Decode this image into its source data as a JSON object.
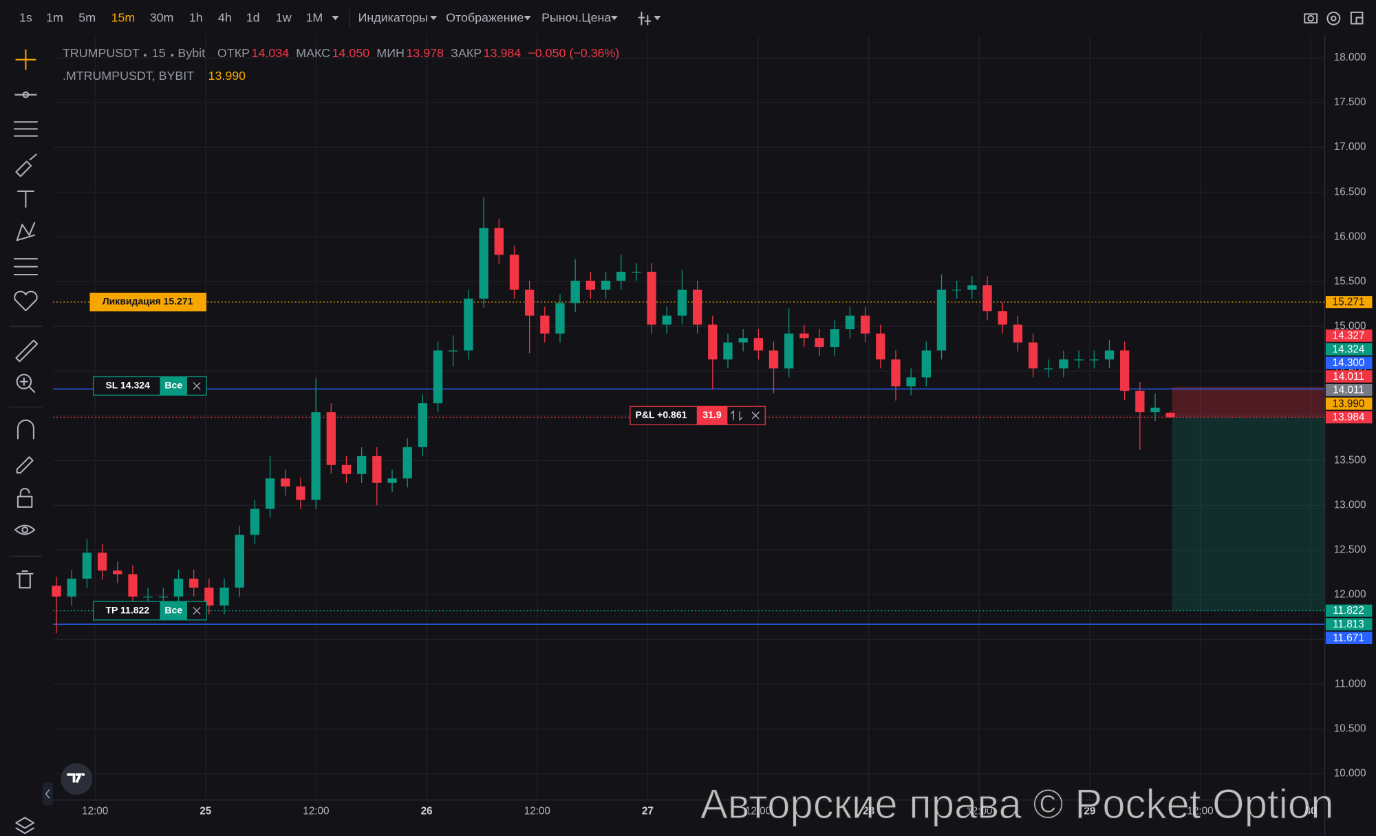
{
  "toolbar": {
    "timeframes": [
      "1s",
      "1m",
      "5m",
      "15m",
      "30m",
      "1h",
      "4h",
      "1d",
      "1w",
      "1M"
    ],
    "active": "15m",
    "menus": [
      "Индикаторы",
      "Отображение",
      "Рыноч.Цена"
    ]
  },
  "legend": {
    "symbol": "TRUMPUSDT",
    "interval": "15",
    "exchange": "Bybit",
    "fields": [
      {
        "label": "ОТКР",
        "value": "14.034"
      },
      {
        "label": "МАКС",
        "value": "14.050"
      },
      {
        "label": "МИН",
        "value": "13.978"
      },
      {
        "label": "ЗАКР",
        "value": "13.984"
      }
    ],
    "change": "−0.050 (−0.36%)",
    "symbol2": ".MTRUMPUSDT, BYBIT",
    "value2": "13.990"
  },
  "chart_data": {
    "type": "candlestick",
    "up_color": "#089981",
    "down_color": "#f23645",
    "grid": true,
    "open": [
      12.1,
      11.98,
      12.18,
      12.47,
      12.27,
      12.23,
      11.98,
      11.98,
      11.98,
      12.18,
      12.08,
      11.88,
      12.08,
      12.67,
      12.96,
      13.3,
      13.21,
      13.06,
      14.04,
      13.45,
      13.35,
      13.55,
      13.25,
      13.3,
      13.65,
      14.14,
      14.73,
      14.73,
      15.31,
      16.1,
      15.8,
      15.41,
      15.12,
      14.92,
      15.26,
      15.51,
      15.41,
      15.51,
      15.61,
      15.61,
      15.02,
      15.12,
      15.41,
      15.02,
      14.63,
      14.82,
      14.87,
      14.73,
      14.53,
      14.92,
      14.87,
      14.77,
      14.97,
      15.12,
      14.92,
      14.63,
      14.33,
      14.43,
      14.73,
      15.41,
      15.41,
      15.46,
      15.17,
      15.02,
      14.82,
      14.53,
      14.53,
      14.63,
      14.63,
      14.63,
      14.73,
      14.28,
      14.04,
      14.034
    ],
    "high": [
      12.2,
      12.28,
      12.62,
      12.57,
      12.37,
      12.33,
      12.08,
      12.08,
      12.28,
      12.28,
      12.18,
      12.18,
      12.77,
      13.06,
      13.55,
      13.4,
      13.31,
      14.42,
      14.14,
      13.55,
      13.65,
      13.65,
      13.4,
      13.75,
      14.24,
      14.83,
      14.9,
      15.41,
      16.44,
      16.2,
      15.9,
      15.51,
      15.22,
      15.36,
      15.75,
      15.61,
      15.61,
      15.8,
      15.71,
      15.71,
      15.22,
      15.63,
      15.51,
      15.12,
      14.92,
      14.97,
      14.97,
      14.83,
      15.2,
      15.02,
      14.97,
      15.07,
      15.22,
      15.22,
      15.02,
      14.73,
      14.53,
      14.83,
      15.58,
      15.51,
      15.56,
      15.56,
      15.27,
      15.12,
      14.92,
      14.63,
      14.73,
      14.73,
      14.73,
      14.85,
      14.83,
      14.38,
      14.25,
      14.05
    ],
    "low": [
      11.57,
      11.88,
      12.08,
      12.17,
      12.13,
      11.88,
      11.88,
      11.78,
      11.88,
      11.98,
      11.78,
      11.78,
      11.98,
      12.57,
      12.86,
      13.11,
      12.96,
      12.96,
      13.35,
      13.25,
      13.25,
      13.0,
      13.15,
      13.2,
      13.55,
      14.04,
      14.55,
      14.63,
      15.21,
      15.7,
      15.31,
      14.7,
      14.82,
      14.82,
      15.16,
      15.31,
      15.31,
      15.41,
      15.51,
      14.92,
      14.92,
      15.02,
      14.92,
      14.3,
      14.53,
      14.72,
      14.63,
      14.25,
      14.43,
      14.77,
      14.67,
      14.67,
      14.87,
      14.82,
      14.53,
      14.17,
      14.23,
      14.33,
      14.63,
      15.31,
      15.31,
      15.07,
      14.92,
      14.72,
      14.43,
      14.43,
      14.43,
      14.53,
      14.53,
      14.53,
      14.18,
      13.62,
      13.94,
      13.978
    ],
    "close": [
      11.98,
      12.18,
      12.47,
      12.27,
      12.23,
      11.98,
      11.98,
      11.98,
      12.18,
      12.08,
      11.88,
      12.08,
      12.67,
      12.96,
      13.3,
      13.21,
      13.06,
      14.04,
      13.45,
      13.35,
      13.55,
      13.25,
      13.3,
      13.65,
      14.14,
      14.73,
      14.73,
      15.31,
      16.1,
      15.8,
      15.41,
      15.12,
      14.92,
      15.26,
      15.51,
      15.41,
      15.51,
      15.61,
      15.61,
      15.02,
      15.12,
      15.41,
      15.02,
      14.63,
      14.82,
      14.87,
      14.73,
      14.53,
      14.92,
      14.87,
      14.77,
      14.97,
      15.12,
      14.92,
      14.63,
      14.33,
      14.43,
      14.73,
      15.41,
      15.41,
      15.46,
      15.17,
      15.02,
      14.82,
      14.53,
      14.53,
      14.63,
      14.63,
      14.63,
      14.73,
      14.28,
      14.04,
      14.09,
      13.984
    ],
    "ylim": [
      9.706,
      18.255
    ],
    "yticks": [
      {
        "value": 10,
        "label": "10.000"
      },
      {
        "value": 10.5,
        "label": "10.500"
      },
      {
        "value": 11,
        "label": "11.000"
      },
      {
        "value": 11.5,
        "label": "11.500"
      },
      {
        "value": 12,
        "label": "12.000"
      },
      {
        "value": 12.5,
        "label": "12.500"
      },
      {
        "value": 13,
        "label": "13.000"
      },
      {
        "value": 13.5,
        "label": "13.500"
      },
      {
        "value": 14,
        "label": "14.000"
      },
      {
        "value": 14.5,
        "label": "14.500"
      },
      {
        "value": 15,
        "label": "15.000"
      },
      {
        "value": 15.5,
        "label": "15.500"
      },
      {
        "value": 16,
        "label": "16.000"
      },
      {
        "value": 16.5,
        "label": "16.500"
      },
      {
        "value": 17,
        "label": "17.000"
      },
      {
        "value": 17.5,
        "label": "17.500"
      },
      {
        "value": 18,
        "label": "18.000"
      }
    ],
    "xtick_labels": [
      "12:00",
      "25",
      "12:00",
      "26",
      "12:00",
      "27",
      "12:00",
      "28",
      "12:00",
      "29",
      "12:00",
      "30"
    ],
    "levels": [
      {
        "value": 15.271,
        "color": "#f7a600",
        "style": "dotted"
      },
      {
        "value": 14.3,
        "color": "#2962ff",
        "style": "solid"
      },
      {
        "value": 13.984,
        "color": "#f23645",
        "style": "dotted"
      },
      {
        "value": 11.822,
        "color": "#089981",
        "style": "dotted"
      },
      {
        "value": 11.671,
        "color": "#2962ff",
        "style": "solid"
      }
    ],
    "position": {
      "entry": 13.984,
      "stop_loss": 14.324,
      "take_profit": 11.822
    },
    "price_labels": [
      {
        "value": 15.271,
        "label": "15.271",
        "color": "#f7a600"
      },
      {
        "value": 14.327,
        "label": "14.327",
        "color": "#f23645"
      },
      {
        "value": 14.324,
        "label": "14.324",
        "color": "#089981"
      },
      {
        "value": 14.3,
        "label": "14.300",
        "color": "#2962ff"
      },
      {
        "value": 14.011,
        "label": "14.011",
        "color": "#f23645"
      },
      {
        "value": 14.011,
        "label": "14.011",
        "color": "#787b86"
      },
      {
        "value": 13.99,
        "label": "13.990",
        "color": "#f7a600"
      },
      {
        "value": 13.984,
        "label": "13.984",
        "color": "#f23645"
      },
      {
        "value": 11.822,
        "label": "11.822",
        "color": "#089981"
      },
      {
        "value": 11.813,
        "label": "11.813",
        "color": "#089981"
      },
      {
        "value": 11.671,
        "label": "11.671",
        "color": "#2962ff"
      }
    ],
    "tags": {
      "liquidation": "Ликвидация 15.271",
      "sl": {
        "text": "SL 14.324",
        "button": "Все"
      },
      "tp": {
        "text": "TP 11.822",
        "button": "Все"
      },
      "pnl": {
        "text": "P&L +0.861",
        "qty": "31.9"
      }
    }
  },
  "watermark": "Авторские права © Pocket Option"
}
